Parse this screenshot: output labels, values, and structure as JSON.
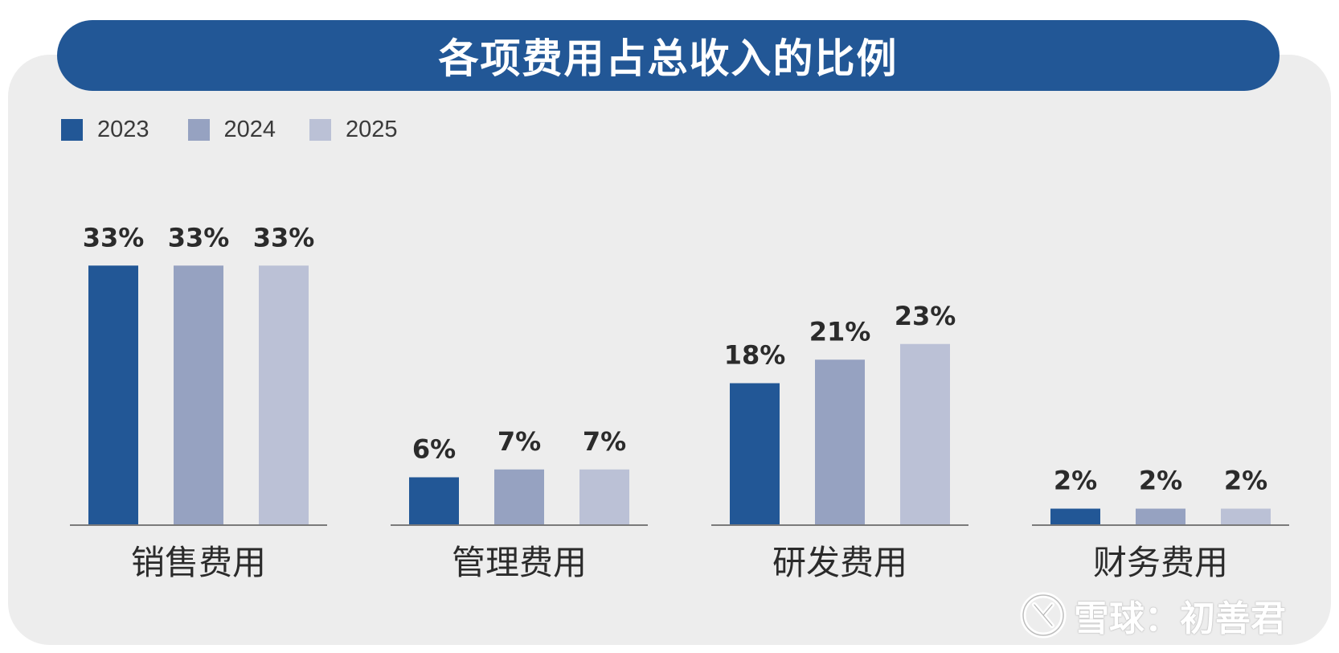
{
  "chart_data": {
    "type": "bar",
    "title": "各项费用占总收入的比例",
    "categories": [
      "销售费用",
      "管理费用",
      "研发费用",
      "财务费用"
    ],
    "series": [
      {
        "name": "2023",
        "color": "#225796",
        "values": [
          33,
          6,
          18,
          2
        ]
      },
      {
        "name": "2024",
        "color": "#96a2c1",
        "values": [
          33,
          7,
          21,
          2
        ]
      },
      {
        "name": "2025",
        "color": "#bbc1d6",
        "values": [
          33,
          7,
          23,
          2
        ]
      }
    ],
    "value_suffix": "%",
    "xlabel": "",
    "ylabel": "",
    "ylim": [
      0,
      40
    ],
    "legend_position": "top-left",
    "grid": false
  },
  "watermark": {
    "text": "雪球：初善君",
    "icon": "xueqiu-logo-icon"
  }
}
